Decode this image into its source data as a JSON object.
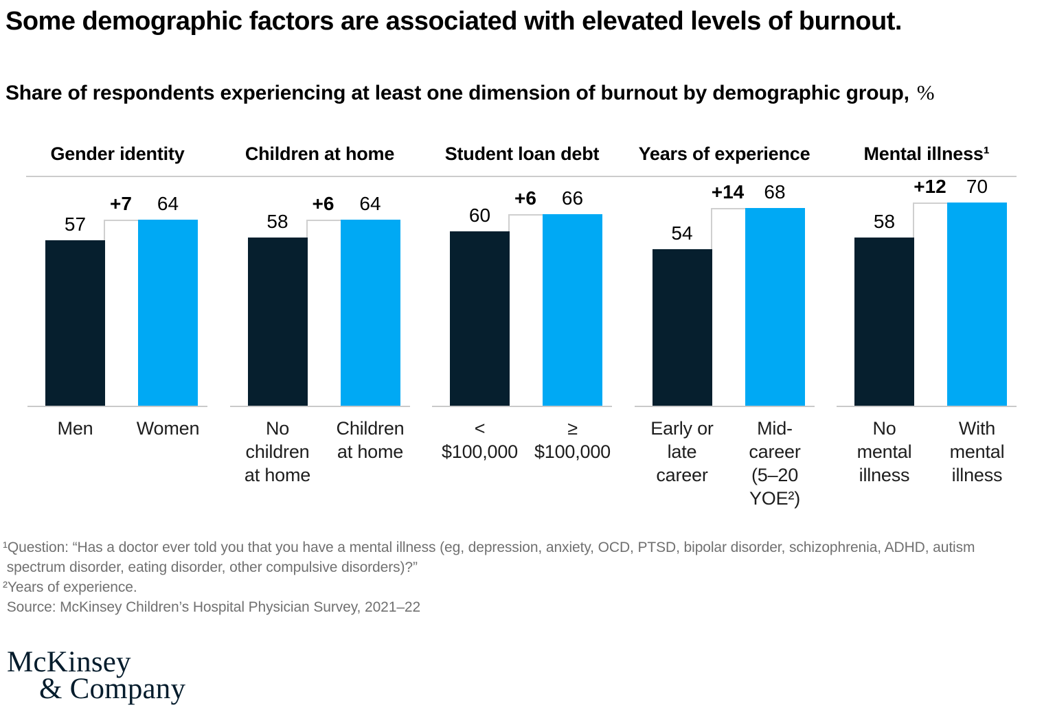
{
  "page": {
    "title": "Some demographic factors are associated with elevated levels of burnout.",
    "subtitle": "Share of respondents experiencing at least one dimension of burnout by demographic group,",
    "subtitle_unit": "%"
  },
  "chart_data": {
    "type": "bar",
    "unit": "%",
    "ylim": [
      0,
      80
    ],
    "grid": false,
    "legend": "none",
    "colors": {
      "base_bar": "#061F2E",
      "compare_bar": "#00A9F4",
      "bridge_fill": "#FFFFFF",
      "bridge_border": "#CFCFCF",
      "rule": "#CCCCCC",
      "footnote_text": "#707070"
    },
    "groups": [
      {
        "header": "Gender identity",
        "bars": [
          {
            "label": "Men",
            "value": 57
          },
          {
            "label": "Women",
            "value": 64
          }
        ],
        "delta_label": "+7"
      },
      {
        "header": "Children at home",
        "bars": [
          {
            "label": "No\nchildren\nat home",
            "value": 58
          },
          {
            "label": "Children\nat home",
            "value": 64
          }
        ],
        "delta_label": "+6"
      },
      {
        "header": "Student loan debt",
        "bars": [
          {
            "label": "<\n$100,000",
            "value": 60
          },
          {
            "label": "≥\n$100,000",
            "value": 66
          }
        ],
        "delta_label": "+6"
      },
      {
        "header": "Years of experience",
        "bars": [
          {
            "label": "Early or\nlate\ncareer",
            "value": 54
          },
          {
            "label": "Mid-\ncareer\n(5–20\nYOE²)",
            "value": 68
          }
        ],
        "delta_label": "+14"
      },
      {
        "header": "Mental illness¹",
        "bars": [
          {
            "label": "No\nmental\nillness",
            "value": 58
          },
          {
            "label": "With\nmental\nillness",
            "value": 70
          }
        ],
        "delta_label": "+12"
      }
    ]
  },
  "footnotes": [
    "¹Question: “Has a doctor ever told you that you have a mental illness (eg, depression, anxiety, OCD, PTSD, bipolar disorder, schizophrenia, ADHD, autism\n spectrum disorder, eating disorder, other compulsive disorders)?”",
    "²Years of experience.",
    " Source: McKinsey Children’s Hospital Physician Survey, 2021–22"
  ],
  "logo": {
    "line1": "McKinsey",
    "line2": "& Company"
  }
}
